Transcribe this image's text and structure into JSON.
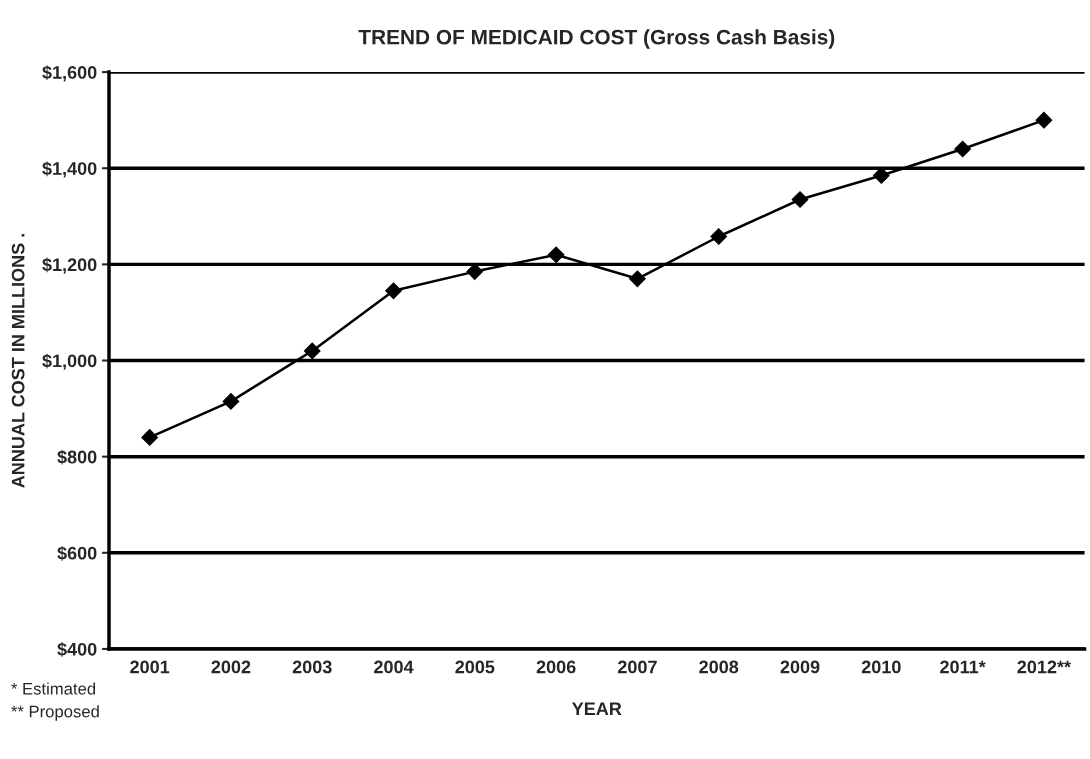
{
  "chart_data": {
    "type": "line",
    "title": "TREND OF MEDICAID COST (Gross Cash Basis)",
    "xlabel": "YEAR",
    "ylabel": "ANNUAL COST IN MILLIONS .",
    "categories": [
      "2001",
      "2002",
      "2003",
      "2004",
      "2005",
      "2006",
      "2007",
      "2008",
      "2009",
      "2010",
      "2011*",
      "2012**"
    ],
    "series": [
      {
        "color": "#000000",
        "values": [
          840,
          915,
          1020,
          1145,
          1185,
          1220,
          1170,
          1258,
          1335,
          1385,
          1440,
          1500
        ]
      }
    ],
    "ylim": [
      400,
      1600
    ],
    "yticks": [
      {
        "value": 400,
        "label": "$400"
      },
      {
        "value": 600,
        "label": "$600"
      },
      {
        "value": 800,
        "label": "$800"
      },
      {
        "value": 1000,
        "label": "$1,000"
      },
      {
        "value": 1200,
        "label": "$1,200"
      },
      {
        "value": 1400,
        "label": "$1,400"
      },
      {
        "value": 1600,
        "label": "$1,600"
      }
    ],
    "grid": "y",
    "marker": "diamond",
    "line_style": "solid",
    "annotations": [
      "* Estimated",
      "** Proposed"
    ]
  }
}
